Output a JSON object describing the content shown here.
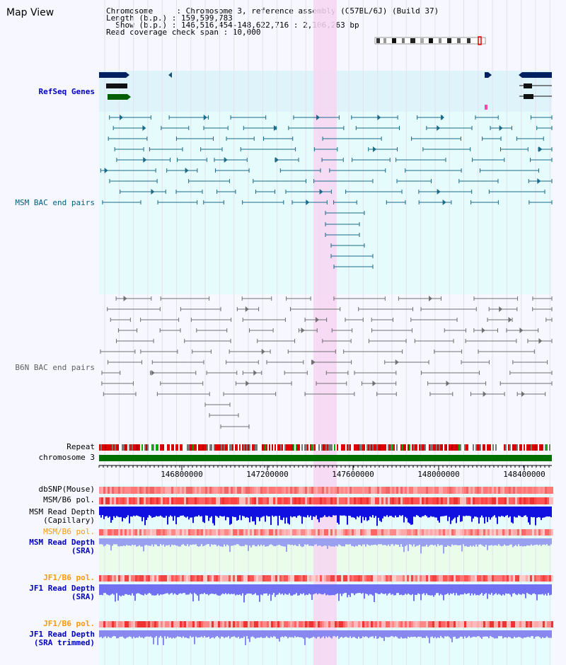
{
  "title": "Map View",
  "info": {
    "line1": "Chromosome     : Chromosome 3, reference assembly (C57BL/6J) (Build 37)",
    "line2": "Length (b.p.) : 159,599,783",
    "line3": "  Show (b.p.) : 146,516,454-148,622,716 : 2,106,263 bp",
    "line4": "Read coverage check span : 10,000"
  },
  "tracks": {
    "refseq": "RefSeq Genes",
    "msm_bac": "MSM BAC end pairs",
    "b6n_bac": "B6N BAC end pairs",
    "repeat": "Repeat",
    "chromosome": "chromosome 3",
    "dbsnp": "dbSNP(Mouse)",
    "msm_b6_pol": "MSM/B6 pol.",
    "msm_depth_cap": "MSM Read Depth\n(Capillary)",
    "msm_b6_pol2": "MSM/B6 pol.",
    "msm_depth_sra": "MSM Read Depth\n(SRA)",
    "jf1_b6_pol": "JF1/B6 pol.",
    "jf1_depth_sra": "JF1 Read Depth\n(SRA)",
    "jf1_b6_pol2": "JF1/B6 pol.",
    "jf1_depth_trim": "JF1 Read Depth\n(SRA trimmed)"
  },
  "axis": {
    "ticks": [
      "146800000",
      "147200000",
      "147600000",
      "148000000",
      "148400000"
    ]
  },
  "colors": {
    "refseq_label": "#0000c0",
    "msm_label": "#006080",
    "b6n_label": "#606060",
    "orange_label": "#ff9900",
    "blue_label": "#0000c0",
    "highlight": "#f7d6f2",
    "chromosome_bar": "#007000",
    "msm_feature": "#1a6a8a",
    "b6n_feature": "#707070"
  }
}
